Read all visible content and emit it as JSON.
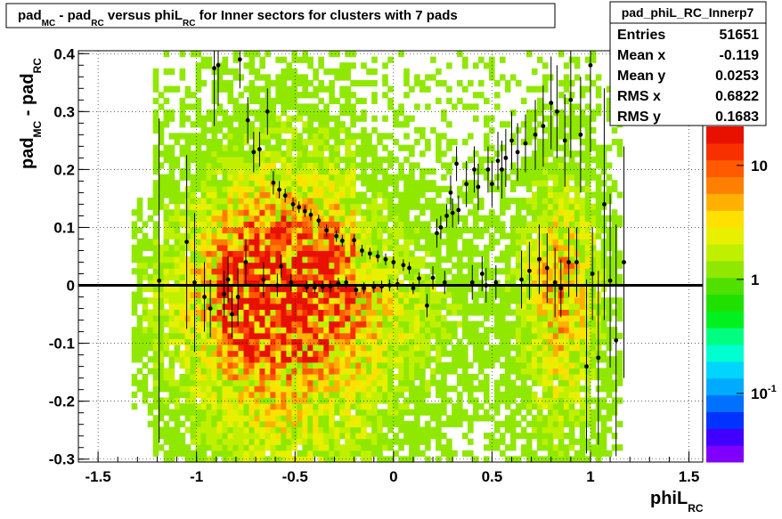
{
  "title": {
    "parts": [
      "pad",
      "MC",
      " - pad",
      "RC",
      " versus phiL",
      "RC",
      " for Inner sectors for clusters with 7 pads"
    ]
  },
  "stats": {
    "name": "pad_phiL_RC_Innerp7",
    "rows": [
      {
        "label": "Entries",
        "value": "51651"
      },
      {
        "label": "Mean x",
        "value": "-0.119"
      },
      {
        "label": "Mean y",
        "value": "0.0253"
      },
      {
        "label": "RMS x",
        "value": "0.6822"
      },
      {
        "label": "RMS y",
        "value": "0.1683"
      }
    ]
  },
  "axes": {
    "xlabel_main": "phiL",
    "xlabel_sub": "RC",
    "ylabel_parts": [
      "pad",
      "MC",
      " - pad",
      "RC"
    ]
  },
  "palette": {
    "colorbar_labels": [
      {
        "text": "10",
        "v": 10.0
      },
      {
        "text": "1",
        "v": 1.0
      },
      {
        "text": "10",
        "sup": "-1",
        "v": 0.1
      }
    ],
    "colors": [
      "#7f00ff",
      "#4000ff",
      "#0033ff",
      "#0070ff",
      "#00aaff",
      "#00d4ff",
      "#00ffd0",
      "#00ff80",
      "#00f020",
      "#20e000",
      "#50e000",
      "#90e800",
      "#c0f000",
      "#e8f000",
      "#ffe000",
      "#ffb000",
      "#ff8000",
      "#ff5a00",
      "#f83000",
      "#e81000"
    ]
  },
  "chart_data": {
    "type": "heatmap",
    "xlim": [
      -1.6,
      1.57
    ],
    "ylim": [
      -0.305,
      0.405
    ],
    "xticks": [
      -1.5,
      -1,
      -0.5,
      0,
      0.5,
      1,
      1.5
    ],
    "xtick_labels": [
      "-1.5",
      "-1",
      "-0.5",
      "0",
      "0.5",
      "1",
      "1.5"
    ],
    "yticks": [
      -0.3,
      -0.2,
      -0.1,
      0,
      0.1,
      0.2,
      0.3,
      0.4
    ],
    "ytick_labels": [
      "-0.3",
      "-0.2",
      "-0.1",
      "0",
      "0.1",
      "0.2",
      "0.3",
      "0.4"
    ],
    "grid": true,
    "zero_line_y": 0,
    "profile": [
      {
        "x": -1.19,
        "y": 0.008,
        "e": 0.28
      },
      {
        "x": -1.05,
        "y": 0.075,
        "e": 0.15
      },
      {
        "x": -1.01,
        "y": 0.005,
        "e": 0.12
      },
      {
        "x": -0.96,
        "y": -0.02,
        "e": 0.06
      },
      {
        "x": -0.93,
        "y": -0.04,
        "e": 0.05
      },
      {
        "x": -0.91,
        "y": 0.375,
        "e": 0.1
      },
      {
        "x": -0.89,
        "y": 0.38,
        "e": 0.07
      },
      {
        "x": -0.86,
        "y": -0.015,
        "e": 0.04
      },
      {
        "x": -0.84,
        "y": 0.01,
        "e": 0.04
      },
      {
        "x": -0.82,
        "y": -0.05,
        "e": 0.04
      },
      {
        "x": -0.79,
        "y": -0.02,
        "e": 0.05
      },
      {
        "x": -0.78,
        "y": 0.39,
        "e": 0.05
      },
      {
        "x": -0.75,
        "y": 0.04,
        "e": 0.04
      },
      {
        "x": -0.74,
        "y": 0.285,
        "e": 0.04
      },
      {
        "x": -0.71,
        "y": 0.23,
        "e": 0.035
      },
      {
        "x": -0.68,
        "y": 0.235,
        "e": 0.03
      },
      {
        "x": -0.66,
        "y": 0.01,
        "e": 0.03
      },
      {
        "x": -0.64,
        "y": 0.3,
        "e": 0.04
      },
      {
        "x": -0.61,
        "y": 0.177,
        "e": 0.02
      },
      {
        "x": -0.59,
        "y": 0.0,
        "e": 0.02
      },
      {
        "x": -0.58,
        "y": 0.165,
        "e": 0.015
      },
      {
        "x": -0.57,
        "y": 0.033,
        "e": 0.02
      },
      {
        "x": -0.55,
        "y": 0.155,
        "e": 0.012
      },
      {
        "x": -0.52,
        "y": 0.005,
        "e": 0.015
      },
      {
        "x": -0.51,
        "y": 0.14,
        "e": 0.012
      },
      {
        "x": -0.48,
        "y": 0.135,
        "e": 0.01
      },
      {
        "x": -0.45,
        "y": 0.128,
        "e": 0.01
      },
      {
        "x": -0.44,
        "y": -0.003,
        "e": 0.01
      },
      {
        "x": -0.42,
        "y": 0.122,
        "e": 0.01
      },
      {
        "x": -0.4,
        "y": -0.004,
        "e": 0.01
      },
      {
        "x": -0.38,
        "y": 0.112,
        "e": 0.01
      },
      {
        "x": -0.36,
        "y": -0.003,
        "e": 0.01
      },
      {
        "x": -0.34,
        "y": 0.095,
        "e": 0.01
      },
      {
        "x": -0.32,
        "y": -0.002,
        "e": 0.01
      },
      {
        "x": -0.29,
        "y": 0.085,
        "e": 0.01
      },
      {
        "x": -0.28,
        "y": 0.003,
        "e": 0.01
      },
      {
        "x": -0.26,
        "y": 0.077,
        "e": 0.01
      },
      {
        "x": -0.24,
        "y": 0.005,
        "e": 0.01
      },
      {
        "x": -0.2,
        "y": 0.078,
        "e": 0.01
      },
      {
        "x": -0.19,
        "y": -0.008,
        "e": 0.01
      },
      {
        "x": -0.16,
        "y": 0.06,
        "e": 0.01
      },
      {
        "x": -0.15,
        "y": -0.005,
        "e": 0.01
      },
      {
        "x": -0.12,
        "y": 0.055,
        "e": 0.01
      },
      {
        "x": -0.1,
        "y": -0.003,
        "e": 0.01
      },
      {
        "x": -0.08,
        "y": 0.05,
        "e": 0.01
      },
      {
        "x": -0.06,
        "y": -0.002,
        "e": 0.01
      },
      {
        "x": -0.04,
        "y": 0.045,
        "e": 0.01
      },
      {
        "x": -0.02,
        "y": 0.0,
        "e": 0.01
      },
      {
        "x": 0.0,
        "y": 0.04,
        "e": 0.01
      },
      {
        "x": 0.02,
        "y": 0.002,
        "e": 0.01
      },
      {
        "x": 0.05,
        "y": 0.035,
        "e": 0.01
      },
      {
        "x": 0.08,
        "y": 0.03,
        "e": 0.01
      },
      {
        "x": 0.1,
        "y": -0.005,
        "e": 0.01
      },
      {
        "x": 0.13,
        "y": 0.012,
        "e": 0.01
      },
      {
        "x": 0.17,
        "y": -0.035,
        "e": 0.02
      },
      {
        "x": 0.2,
        "y": 0.013,
        "e": 0.02
      },
      {
        "x": 0.22,
        "y": 0.09,
        "e": 0.025
      },
      {
        "x": 0.24,
        "y": 0.1,
        "e": 0.02
      },
      {
        "x": 0.26,
        "y": 0.005,
        "e": 0.02
      },
      {
        "x": 0.27,
        "y": 0.12,
        "e": 0.02
      },
      {
        "x": 0.29,
        "y": 0.16,
        "e": 0.03
      },
      {
        "x": 0.3,
        "y": 0.125,
        "e": 0.025
      },
      {
        "x": 0.32,
        "y": 0.21,
        "e": 0.03
      },
      {
        "x": 0.33,
        "y": 0.13,
        "e": 0.025
      },
      {
        "x": 0.37,
        "y": 0.175,
        "e": 0.04
      },
      {
        "x": 0.4,
        "y": 0.005,
        "e": 0.03
      },
      {
        "x": 0.41,
        "y": 0.2,
        "e": 0.04
      },
      {
        "x": 0.43,
        "y": 0.17,
        "e": 0.04
      },
      {
        "x": 0.45,
        "y": 0.02,
        "e": 0.03
      },
      {
        "x": 0.47,
        "y": 0.0,
        "e": 0.03
      },
      {
        "x": 0.48,
        "y": 0.2,
        "e": 0.04
      },
      {
        "x": 0.5,
        "y": 0.175,
        "e": 0.04
      },
      {
        "x": 0.52,
        "y": 0.005,
        "e": 0.03
      },
      {
        "x": 0.53,
        "y": 0.215,
        "e": 0.05
      },
      {
        "x": 0.55,
        "y": 0.2,
        "e": 0.05
      },
      {
        "x": 0.57,
        "y": 0.22,
        "e": 0.05
      },
      {
        "x": 0.6,
        "y": 0.25,
        "e": 0.05
      },
      {
        "x": 0.63,
        "y": 0.23,
        "e": 0.05
      },
      {
        "x": 0.65,
        "y": 0.01,
        "e": 0.05
      },
      {
        "x": 0.67,
        "y": 0.245,
        "e": 0.05
      },
      {
        "x": 0.69,
        "y": 0.025,
        "e": 0.05
      },
      {
        "x": 0.72,
        "y": 0.26,
        "e": 0.06
      },
      {
        "x": 0.74,
        "y": 0.045,
        "e": 0.06
      },
      {
        "x": 0.76,
        "y": 0.275,
        "e": 0.07
      },
      {
        "x": 0.78,
        "y": 0.03,
        "e": 0.06
      },
      {
        "x": 0.8,
        "y": 0.315,
        "e": 0.08
      },
      {
        "x": 0.82,
        "y": 0.005,
        "e": 0.06
      },
      {
        "x": 0.83,
        "y": 0.3,
        "e": 0.08
      },
      {
        "x": 0.85,
        "y": -0.005,
        "e": 0.05
      },
      {
        "x": 0.87,
        "y": 0.25,
        "e": 0.08
      },
      {
        "x": 0.89,
        "y": 0.04,
        "e": 0.06
      },
      {
        "x": 0.9,
        "y": 0.32,
        "e": 0.1
      },
      {
        "x": 0.93,
        "y": 0.04,
        "e": 0.06
      },
      {
        "x": 0.95,
        "y": 0.26,
        "e": 0.1
      },
      {
        "x": 0.98,
        "y": -0.14,
        "e": 0.15
      },
      {
        "x": 1.0,
        "y": 0.38,
        "e": 0.15
      },
      {
        "x": 1.01,
        "y": 0.02,
        "e": 0.08
      },
      {
        "x": 1.04,
        "y": -0.125,
        "e": 0.15
      },
      {
        "x": 1.07,
        "y": 0.14,
        "e": 0.2
      },
      {
        "x": 1.1,
        "y": 0.008,
        "e": 0.15
      },
      {
        "x": 1.13,
        "y": -0.095,
        "e": 0.2
      },
      {
        "x": 1.17,
        "y": 0.04,
        "e": 0.2
      }
    ]
  }
}
